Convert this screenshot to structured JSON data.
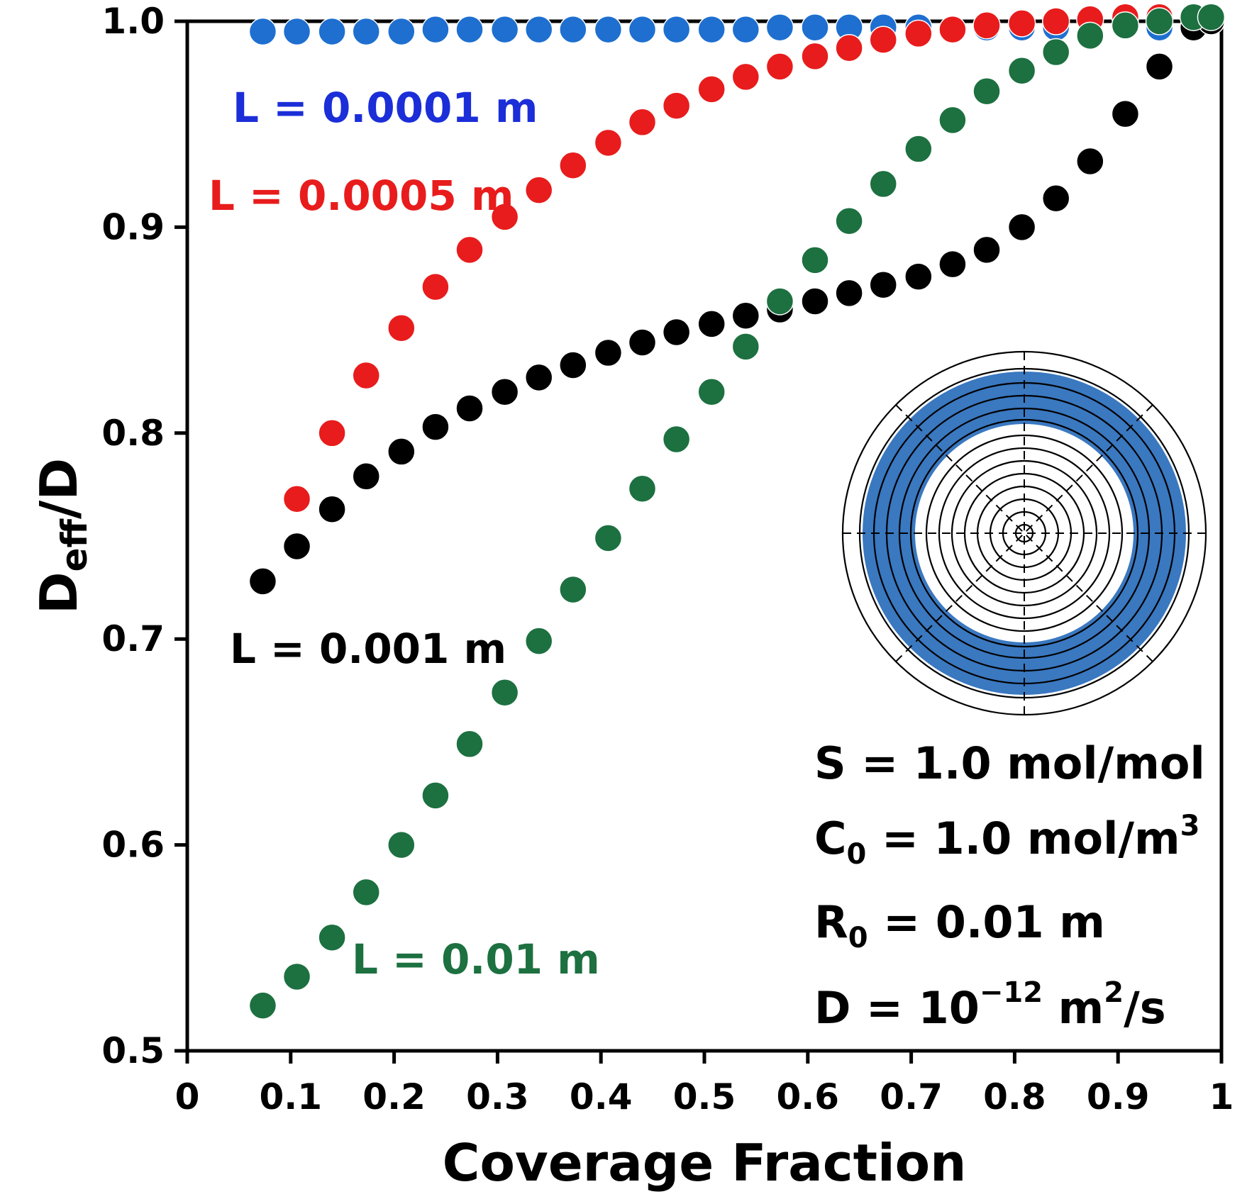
{
  "chart_data": {
    "type": "scatter",
    "title": "",
    "xlabel": "Coverage Fraction",
    "ylabel_main": "D",
    "ylabel_sub": "eff",
    "ylabel_tail": "/D",
    "xlim": [
      0,
      1
    ],
    "ylim": [
      0.5,
      1.0
    ],
    "x_ticks": [
      0,
      0.1,
      0.2,
      0.3,
      0.4,
      0.5,
      0.6,
      0.7,
      0.8,
      0.9,
      1
    ],
    "x_tick_labels": [
      "0",
      "0.1",
      "0.2",
      "0.3",
      "0.4",
      "0.5",
      "0.6",
      "0.7",
      "0.8",
      "0.9",
      "1"
    ],
    "y_ticks": [
      0.5,
      0.6,
      0.7,
      0.8,
      0.9,
      1.0
    ],
    "y_tick_labels": [
      "0.5",
      "0.6",
      "0.7",
      "0.8",
      "0.9",
      "1.0"
    ],
    "grid": false,
    "series": [
      {
        "name": "L = 0.0001 m",
        "color": "#1e6fd0",
        "x": [
          0.073,
          0.106,
          0.14,
          0.173,
          0.207,
          0.24,
          0.273,
          0.307,
          0.34,
          0.373,
          0.407,
          0.44,
          0.473,
          0.507,
          0.54,
          0.573,
          0.607,
          0.64,
          0.673,
          0.707,
          0.773,
          0.807,
          0.84,
          0.94
        ],
        "y": [
          0.995,
          0.995,
          0.995,
          0.995,
          0.995,
          0.996,
          0.996,
          0.996,
          0.996,
          0.996,
          0.996,
          0.996,
          0.996,
          0.996,
          0.996,
          0.997,
          0.997,
          0.997,
          0.997,
          0.997,
          0.997,
          0.997,
          0.997,
          0.997
        ]
      },
      {
        "name": "L = 0.0005 m",
        "color": "#e81c1c",
        "x": [
          0.106,
          0.14,
          0.173,
          0.207,
          0.24,
          0.273,
          0.307,
          0.34,
          0.373,
          0.407,
          0.44,
          0.473,
          0.507,
          0.54,
          0.573,
          0.607,
          0.64,
          0.673,
          0.707,
          0.74,
          0.773,
          0.807,
          0.84,
          0.873,
          0.907,
          0.94
        ],
        "y": [
          0.768,
          0.8,
          0.828,
          0.851,
          0.871,
          0.889,
          0.905,
          0.918,
          0.93,
          0.941,
          0.951,
          0.959,
          0.967,
          0.973,
          0.978,
          0.983,
          0.987,
          0.991,
          0.994,
          0.996,
          0.998,
          0.999,
          1.0,
          1.001,
          1.002,
          1.002
        ]
      },
      {
        "name": "L = 0.001 m",
        "color": "#000000",
        "x": [
          0.073,
          0.106,
          0.14,
          0.173,
          0.207,
          0.24,
          0.273,
          0.307,
          0.34,
          0.373,
          0.407,
          0.44,
          0.473,
          0.507,
          0.54,
          0.573,
          0.607,
          0.64,
          0.673,
          0.707,
          0.74,
          0.773,
          0.807,
          0.84,
          0.873,
          0.907,
          0.94,
          0.973,
          0.99
        ],
        "y": [
          0.728,
          0.745,
          0.763,
          0.779,
          0.791,
          0.803,
          0.812,
          0.82,
          0.827,
          0.833,
          0.839,
          0.844,
          0.849,
          0.853,
          0.857,
          0.86,
          0.864,
          0.868,
          0.872,
          0.876,
          0.882,
          0.889,
          0.9,
          0.914,
          0.932,
          0.955,
          0.978,
          0.997,
          1.0
        ]
      },
      {
        "name": "L = 0.01 m",
        "color": "#1d7040",
        "x": [
          0.073,
          0.106,
          0.14,
          0.173,
          0.207,
          0.24,
          0.273,
          0.307,
          0.34,
          0.373,
          0.407,
          0.44,
          0.473,
          0.507,
          0.54,
          0.573,
          0.607,
          0.64,
          0.673,
          0.707,
          0.74,
          0.773,
          0.807,
          0.84,
          0.873,
          0.907,
          0.94,
          0.973,
          0.99
        ],
        "y": [
          0.522,
          0.536,
          0.555,
          0.577,
          0.6,
          0.624,
          0.649,
          0.674,
          0.699,
          0.724,
          0.749,
          0.773,
          0.797,
          0.82,
          0.842,
          0.864,
          0.884,
          0.903,
          0.921,
          0.938,
          0.952,
          0.966,
          0.976,
          0.985,
          0.993,
          0.998,
          1.0,
          1.002,
          1.002
        ]
      }
    ],
    "annotations": {
      "series_labels": [
        "L = 0.0001 m",
        "L = 0.0005 m",
        "L = 0.001 m",
        "L = 0.01 m"
      ],
      "params": {
        "s_line": "S = 1.0 mol/mol",
        "c_main": "C",
        "c_sub": "0",
        "c_tail": " = 1.0 mol/m",
        "c_sup": "3",
        "r_main": "R",
        "r_sub": "0",
        "r_tail": " = 0.01 m",
        "d_main": "D = 10",
        "d_sup": "−12",
        "d_mid": " m",
        "d_sup2": "2",
        "d_tail": "/s"
      }
    }
  },
  "inset": {
    "fill_color": "#3a78c0",
    "description_label": "blue-ring"
  }
}
